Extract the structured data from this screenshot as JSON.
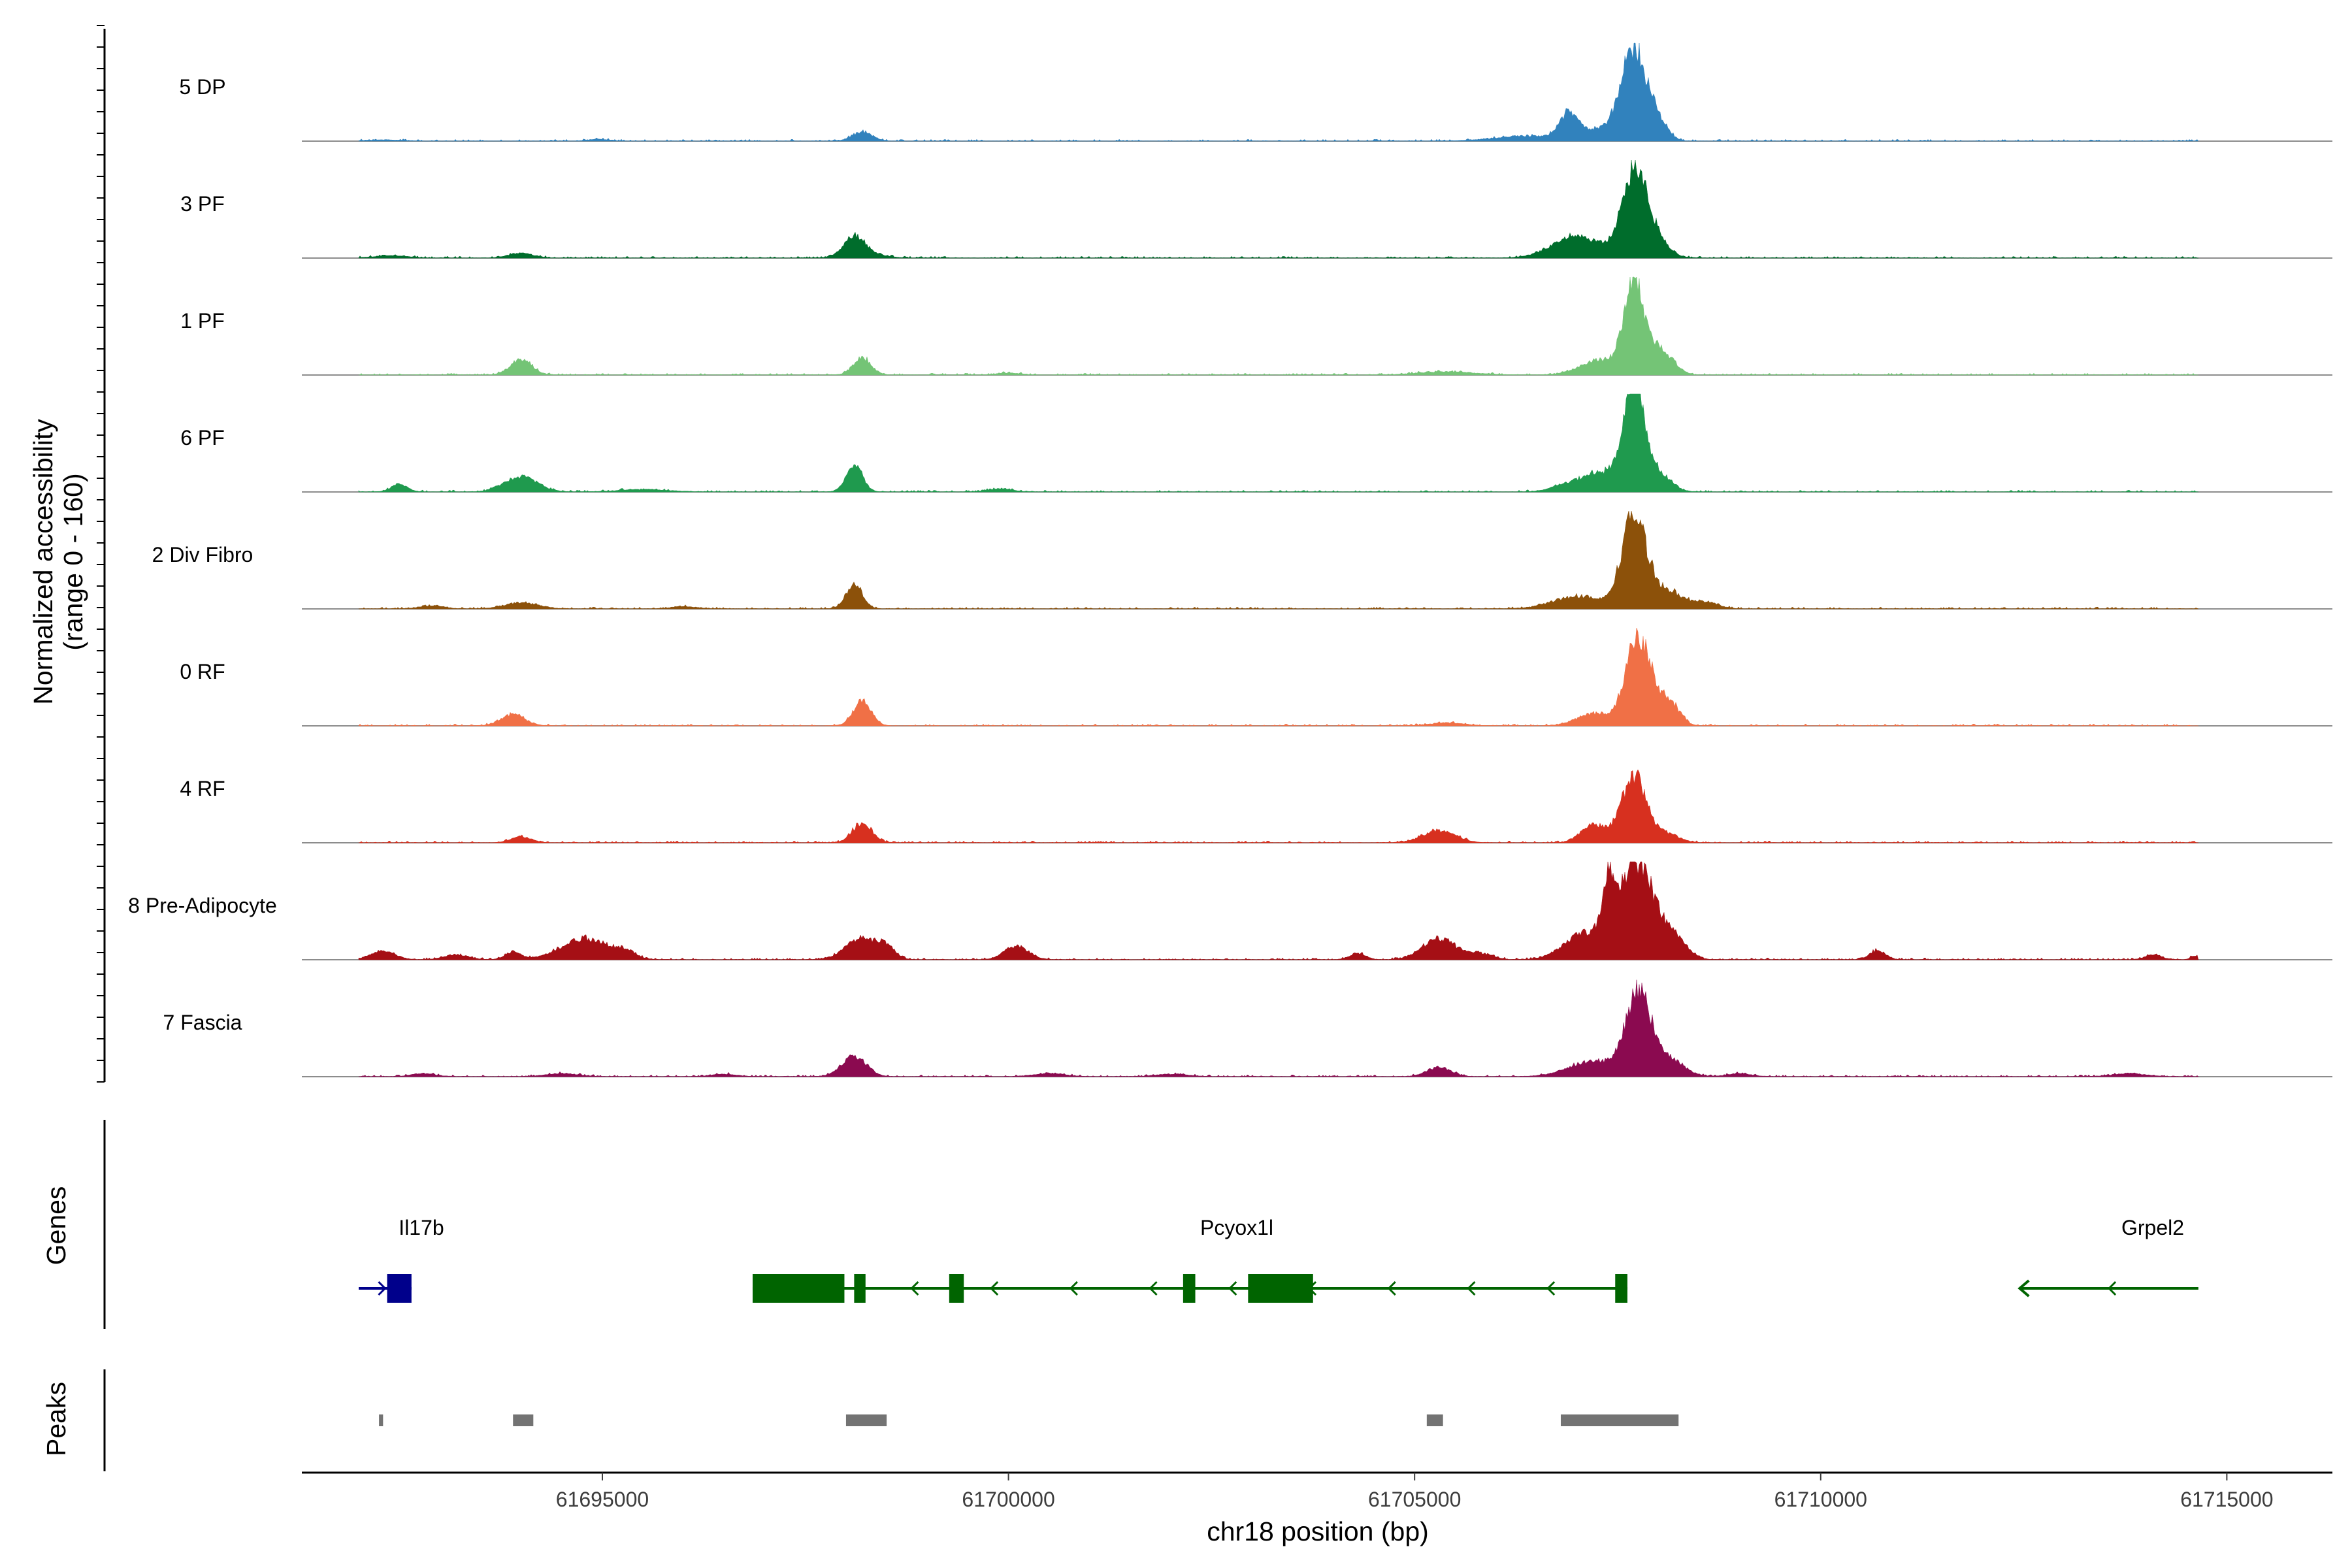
{
  "chart_data": {
    "type": "area",
    "title": "",
    "xlabel": "chr18 position (bp)",
    "ylabel": "Normalized accessibility",
    "ylabel_sub": "(range 0 - 160)",
    "ylim": [
      0,
      160
    ],
    "xlim": [
      61691300,
      61716300
    ],
    "x_ticks": [
      61695000,
      61700000,
      61705000,
      61710000,
      61715000
    ],
    "x_tick_labels": [
      "61695000",
      "61700000",
      "61705000",
      "61710000",
      "61715000"
    ],
    "signal_range": [
      61692000,
      61714650
    ],
    "tracks": [
      {
        "name": "5 DP",
        "color": "#3182bd",
        "peaks": [
          [
            61692300,
            2,
            200
          ],
          [
            61694950,
            3,
            120
          ],
          [
            61698200,
            15,
            120
          ],
          [
            61706400,
            8,
            400
          ],
          [
            61706900,
            40,
            120
          ],
          [
            61707300,
            20,
            200
          ],
          [
            61707700,
            150,
            150
          ],
          [
            61708000,
            30,
            120
          ]
        ]
      },
      {
        "name": "3 PF",
        "color": "#006d2c",
        "peaks": [
          [
            61692400,
            4,
            200
          ],
          [
            61694000,
            8,
            150
          ],
          [
            61698100,
            30,
            120
          ],
          [
            61698200,
            8,
            220
          ],
          [
            61707000,
            35,
            300
          ],
          [
            61707700,
            130,
            150
          ],
          [
            61707900,
            35,
            180
          ]
        ]
      },
      {
        "name": "1 PF",
        "color": "#74c476",
        "peaks": [
          [
            61694000,
            25,
            130
          ],
          [
            61698200,
            28,
            110
          ],
          [
            61700000,
            3,
            150
          ],
          [
            61705400,
            5,
            350
          ],
          [
            61707300,
            25,
            250
          ],
          [
            61707700,
            150,
            120
          ],
          [
            61708000,
            40,
            120
          ],
          [
            61708200,
            12,
            100
          ]
        ]
      },
      {
        "name": "6 PF",
        "color": "#1f9a4e",
        "peaks": [
          [
            61692500,
            12,
            100
          ],
          [
            61694000,
            25,
            200
          ],
          [
            61695500,
            4,
            300
          ],
          [
            61698100,
            45,
            100
          ],
          [
            61699900,
            5,
            150
          ],
          [
            61706900,
            12,
            200
          ],
          [
            61707300,
            30,
            200
          ],
          [
            61707700,
            170,
            130
          ],
          [
            61708000,
            30,
            150
          ]
        ]
      },
      {
        "name": "2 Div Fibro",
        "color": "#8c510a",
        "peaks": [
          [
            61692900,
            5,
            150
          ],
          [
            61694000,
            10,
            200
          ],
          [
            61696000,
            4,
            150
          ],
          [
            61698100,
            40,
            100
          ],
          [
            61707000,
            20,
            300
          ],
          [
            61707700,
            150,
            150
          ],
          [
            61708100,
            30,
            200
          ],
          [
            61708600,
            10,
            150
          ]
        ]
      },
      {
        "name": "0 RF",
        "color": "#f07046",
        "peaks": [
          [
            61693900,
            18,
            150
          ],
          [
            61698200,
            40,
            110
          ],
          [
            61705400,
            5,
            200
          ],
          [
            61707200,
            20,
            200
          ],
          [
            61707750,
            140,
            150
          ],
          [
            61708050,
            30,
            150
          ],
          [
            61708200,
            15,
            100
          ]
        ]
      },
      {
        "name": "4 RF",
        "color": "#d7301f",
        "peaks": [
          [
            61694000,
            10,
            120
          ],
          [
            61698200,
            32,
            120
          ],
          [
            61705300,
            20,
            200
          ],
          [
            61707200,
            30,
            150
          ],
          [
            61707700,
            110,
            150
          ],
          [
            61708100,
            15,
            150
          ]
        ]
      },
      {
        "name": "8 Pre-Adipocyte",
        "color": "#a50f15",
        "peaks": [
          [
            61692300,
            14,
            150
          ],
          [
            61693200,
            8,
            150
          ],
          [
            61693900,
            12,
            100
          ],
          [
            61694800,
            35,
            300
          ],
          [
            61695300,
            10,
            100
          ],
          [
            61698200,
            35,
            200
          ],
          [
            61698500,
            15,
            100
          ],
          [
            61700100,
            22,
            150
          ],
          [
            61704300,
            10,
            100
          ],
          [
            61705300,
            35,
            200
          ],
          [
            61705800,
            10,
            150
          ],
          [
            61707100,
            45,
            250
          ],
          [
            61707400,
            95,
            80
          ],
          [
            61707750,
            160,
            200
          ],
          [
            61708200,
            35,
            150
          ],
          [
            61710700,
            15,
            100
          ],
          [
            61714100,
            8,
            100
          ],
          [
            61714600,
            6,
            50
          ]
        ]
      },
      {
        "name": "7 Fascia",
        "color": "#8b0a50",
        "peaks": [
          [
            61692800,
            5,
            150
          ],
          [
            61694500,
            5,
            200
          ],
          [
            61696500,
            4,
            150
          ],
          [
            61698100,
            32,
            150
          ],
          [
            61700500,
            5,
            200
          ],
          [
            61702000,
            4,
            200
          ],
          [
            61705300,
            15,
            150
          ],
          [
            61707200,
            25,
            300
          ],
          [
            61707750,
            130,
            150
          ],
          [
            61708100,
            30,
            200
          ],
          [
            61709000,
            5,
            150
          ],
          [
            61713800,
            5,
            200
          ]
        ]
      }
    ],
    "genes_label": "Genes",
    "genes": [
      {
        "name": "Il17b",
        "color": "#00008b",
        "strand": "+",
        "start": 61692000,
        "end": 61692650,
        "exons": [
          [
            61692350,
            61692650
          ]
        ]
      },
      {
        "name": "Pcyox1l",
        "color": "#006400",
        "strand": "-",
        "start": 61696850,
        "end": 61707620,
        "exons": [
          [
            61696850,
            61697980
          ],
          [
            61698100,
            61698240
          ],
          [
            61699270,
            61699450
          ],
          [
            61702150,
            61702300
          ],
          [
            61702950,
            61703750
          ],
          [
            61707470,
            61707620
          ]
        ]
      },
      {
        "name": "Grpel2",
        "color": "#006400",
        "strand": "-",
        "start": 61712450,
        "end": 61714650,
        "exons": []
      }
    ],
    "peaks_label": "Peaks",
    "peak_regions": [
      [
        61692250,
        61692300
      ],
      [
        61693900,
        61694150
      ],
      [
        61698000,
        61698500
      ],
      [
        61705150,
        61705350
      ],
      [
        61706800,
        61708250
      ]
    ],
    "peak_color": "#737373"
  }
}
